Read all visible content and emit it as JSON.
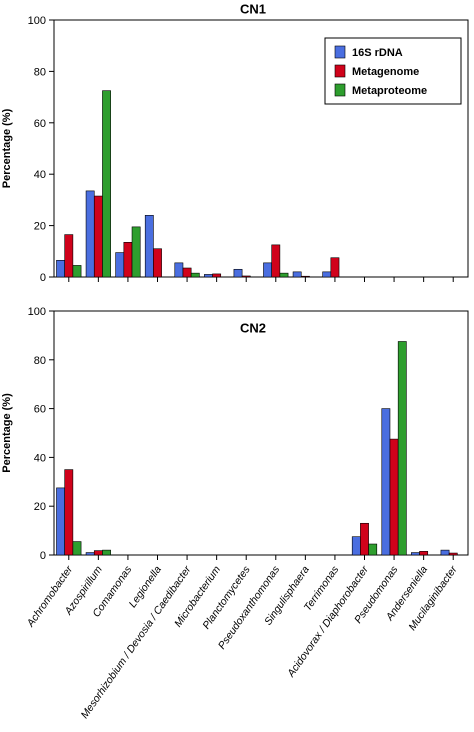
{
  "chart_data": [
    {
      "type": "bar",
      "title": "CN1",
      "ylabel": "Percentage (%)",
      "ylim": [
        0,
        100
      ],
      "yticks": [
        0,
        20,
        40,
        60,
        80,
        100
      ],
      "legend_position": "top-right",
      "categories": [
        "Achromobacter",
        "Azospirillum",
        "Comamonas",
        "Legionella",
        "Mesorhizobium / Devosia / Caedibacter",
        "Microbacterium",
        "Planctomycetes",
        "Pseudoxanthomonas",
        "Singulisphaera",
        "Terrimonas",
        "Acidovorax / Diaphorobacter",
        "Pseudomonas",
        "Anderseniella",
        "Mucilaginibacter"
      ],
      "series": [
        {
          "name": "16S rDNA",
          "color": "#4a6ee0",
          "values": [
            6.5,
            33.5,
            9.5,
            24,
            5.5,
            1,
            3,
            5.5,
            2,
            2,
            0,
            0,
            0,
            0
          ]
        },
        {
          "name": "Metagenome",
          "color": "#d0021b",
          "values": [
            16.5,
            31.5,
            13.5,
            11,
            3.5,
            1.2,
            0.4,
            12.5,
            0.3,
            7.5,
            0,
            0,
            0,
            0
          ]
        },
        {
          "name": "Metaproteome",
          "color": "#2e9e2e",
          "values": [
            4.5,
            72.5,
            19.5,
            0,
            1.5,
            0,
            0,
            1.5,
            0,
            0,
            0,
            0,
            0,
            0
          ]
        }
      ]
    },
    {
      "type": "bar",
      "title": "CN2",
      "ylabel": "Percentage (%)",
      "ylim": [
        0,
        100
      ],
      "yticks": [
        0,
        20,
        40,
        60,
        80,
        100
      ],
      "categories": [
        "Achromobacter",
        "Azospirillum",
        "Comamonas",
        "Legionella",
        "Mesorhizobium / Devosia / Caedibacter",
        "Microbacterium",
        "Planctomycetes",
        "Pseudoxanthomonas",
        "Singulisphaera",
        "Terrimonas",
        "Acidovorax / Diaphorobacter",
        "Pseudomonas",
        "Anderseniella",
        "Mucilaginibacter"
      ],
      "series": [
        {
          "name": "16S rDNA",
          "color": "#4a6ee0",
          "values": [
            27.5,
            1,
            0,
            0,
            0,
            0,
            0,
            0,
            0,
            0,
            7.5,
            60,
            1,
            2
          ]
        },
        {
          "name": "Metagenome",
          "color": "#d0021b",
          "values": [
            35,
            1.8,
            0,
            0,
            0,
            0,
            0,
            0,
            0,
            0,
            13,
            47.5,
            1.5,
            0.8
          ]
        },
        {
          "name": "Metaproteome",
          "color": "#2e9e2e",
          "values": [
            5.5,
            2,
            0,
            0,
            0,
            0,
            0,
            0,
            0,
            0,
            4.5,
            87.5,
            0,
            0
          ]
        }
      ]
    }
  ]
}
